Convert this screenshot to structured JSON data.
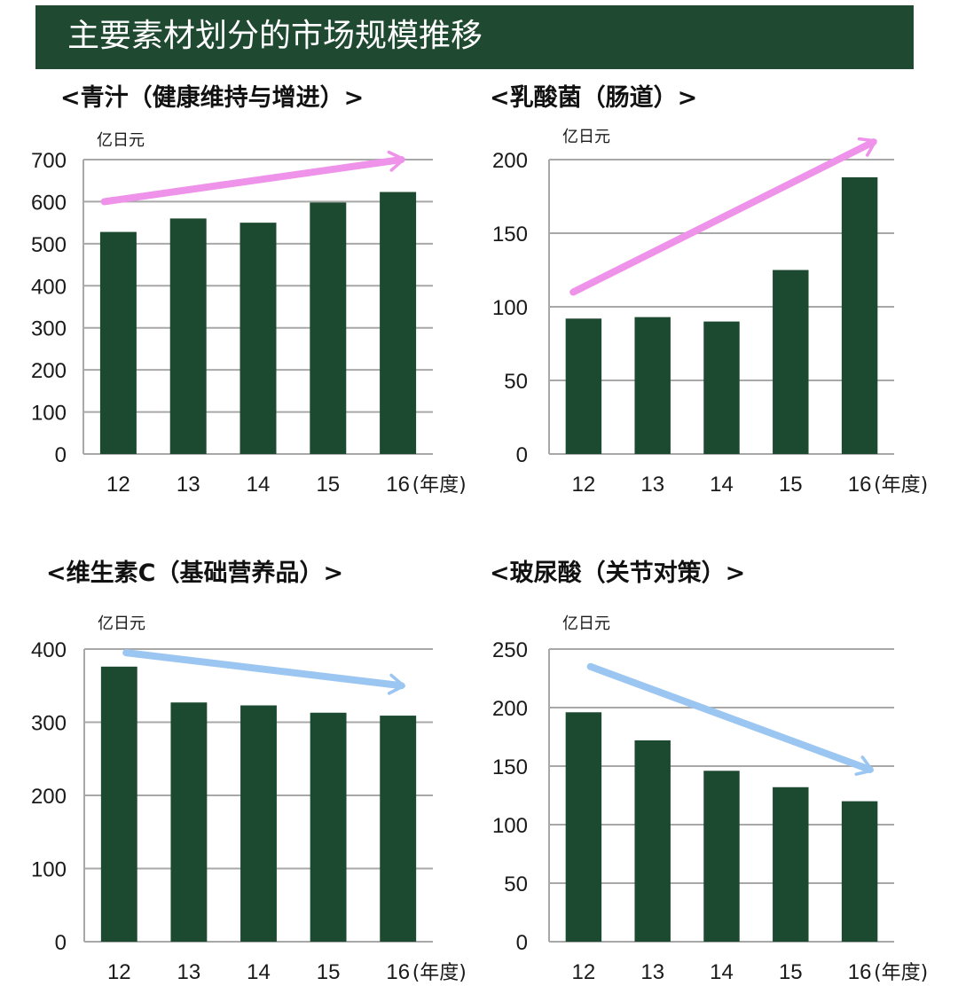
{
  "header": {
    "title": "主要素材划分的市场规模推移"
  },
  "colors": {
    "bar": "#1c4a30",
    "grid": "#a8a8a8",
    "title_bg": "#1f4a31",
    "arrow_up": "#ee92ea",
    "arrow_down": "#9cc6f2"
  },
  "chart_data": [
    {
      "type": "bar",
      "title": "<青汁（健康维持与增进）>",
      "ylabel": "亿日元",
      "xlabel": "(年度)",
      "categories": [
        "12",
        "13",
        "14",
        "15",
        "16"
      ],
      "values": [
        528,
        560,
        550,
        598,
        623
      ],
      "ylim": [
        0,
        700
      ],
      "yticks": [
        0,
        100,
        200,
        300,
        400,
        500,
        600,
        700
      ],
      "grid": true,
      "trend": "up",
      "trend_arrow": {
        "from": [
          -0.2,
          600
        ],
        "to": [
          4.05,
          700
        ]
      }
    },
    {
      "type": "bar",
      "title": "<乳酸菌（肠道）>",
      "ylabel": "亿日元",
      "xlabel": "(年度)",
      "categories": [
        "12",
        "13",
        "14",
        "15",
        "16"
      ],
      "values": [
        92,
        93,
        90,
        125,
        188
      ],
      "ylim": [
        0,
        200
      ],
      "yticks": [
        0,
        50,
        100,
        150,
        200
      ],
      "grid": true,
      "trend": "up",
      "trend_arrow": {
        "from": [
          -0.15,
          110
        ],
        "to": [
          4.2,
          212
        ]
      }
    },
    {
      "type": "bar",
      "title": "<维生素C（基础营养品）>",
      "ylabel": "亿日元",
      "xlabel": "(年度)",
      "categories": [
        "12",
        "13",
        "14",
        "15",
        "16"
      ],
      "values": [
        376,
        327,
        323,
        313,
        309
      ],
      "ylim": [
        0,
        400
      ],
      "yticks": [
        0,
        100,
        200,
        300,
        400
      ],
      "grid": true,
      "trend": "down",
      "trend_arrow": {
        "from": [
          0.1,
          395
        ],
        "to": [
          4.05,
          350
        ]
      }
    },
    {
      "type": "bar",
      "title": "<玻尿酸（关节对策）>",
      "ylabel": "亿日元",
      "xlabel": "(年度)",
      "categories": [
        "12",
        "13",
        "14",
        "15",
        "16"
      ],
      "values": [
        196,
        172,
        146,
        132,
        120
      ],
      "ylim": [
        0,
        250
      ],
      "yticks": [
        0,
        50,
        100,
        150,
        200,
        250
      ],
      "grid": true,
      "trend": "down",
      "trend_arrow": {
        "from": [
          0.1,
          235
        ],
        "to": [
          4.15,
          147
        ]
      }
    }
  ]
}
